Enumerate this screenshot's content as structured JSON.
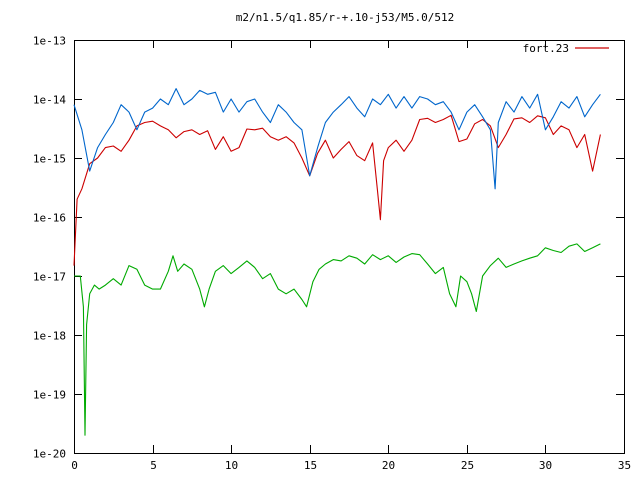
{
  "chart_data": {
    "type": "line",
    "title": "m2/n1.5/q1.85/r-+.10-j53/M5.0/512",
    "xlabel": "",
    "ylabel": "",
    "xlim": [
      0,
      35
    ],
    "ylim": [
      1e-20,
      1e-13
    ],
    "y_scale": "log",
    "grid": false,
    "legend_position": "top-right",
    "x_ticks": [
      0,
      5,
      10,
      15,
      20,
      25,
      30,
      35
    ],
    "x_tick_labels": [
      "0",
      "5",
      "10",
      "15",
      "20",
      "25",
      "30",
      "35"
    ],
    "y_ticks": [
      1e-20,
      1e-19,
      1e-18,
      1e-17,
      1e-16,
      1e-15,
      1e-14,
      1e-13
    ],
    "y_tick_labels": [
      "1e-20",
      "1e-19",
      "1e-18",
      "1e-17",
      "1e-16",
      "1e-15",
      "1e-14",
      "1e-13"
    ],
    "legend": [
      {
        "label": "fort.23",
        "color": "#cc0000"
      }
    ],
    "series": [
      {
        "color": "#cc0000",
        "x": [
          0.0,
          0.2,
          0.5,
          1.0,
          1.5,
          2.0,
          2.5,
          3.0,
          3.5,
          4.0,
          4.5,
          5.0,
          5.5,
          6.0,
          6.5,
          7.0,
          7.5,
          8.0,
          8.5,
          9.0,
          9.5,
          10.0,
          10.5,
          11.0,
          11.5,
          12.0,
          12.5,
          13.0,
          13.5,
          14.0,
          14.5,
          15.0,
          15.5,
          16.0,
          16.5,
          17.0,
          17.5,
          18.0,
          18.5,
          19.0,
          19.3,
          19.5,
          19.7,
          20.0,
          20.5,
          21.0,
          21.5,
          22.0,
          22.5,
          23.0,
          23.5,
          24.0,
          24.5,
          25.0,
          25.5,
          26.0,
          26.5,
          27.0,
          27.5,
          28.0,
          28.5,
          29.0,
          29.5,
          30.0,
          30.5,
          31.0,
          31.5,
          32.0,
          32.5,
          33.0,
          33.5
        ],
        "y": [
          1.5e-17,
          2e-16,
          3e-16,
          8e-16,
          1e-15,
          1.5e-15,
          1.6e-15,
          1.3e-15,
          2e-15,
          3.5e-15,
          4e-15,
          4.2e-15,
          3.5e-15,
          3e-15,
          2.2e-15,
          2.8e-15,
          3e-15,
          2.5e-15,
          2.9e-15,
          1.4e-15,
          2.3e-15,
          1.3e-15,
          1.5e-15,
          3.1e-15,
          3e-15,
          3.2e-15,
          2.3e-15,
          2e-15,
          2.3e-15,
          1.8e-15,
          1e-15,
          5e-16,
          1.2e-15,
          2e-15,
          1e-15,
          1.4e-15,
          1.9e-15,
          1.1e-15,
          9e-16,
          1.8e-15,
          3e-16,
          9e-17,
          9e-16,
          1.5e-15,
          2e-15,
          1.3e-15,
          2e-15,
          4.5e-15,
          4.7e-15,
          4e-15,
          4.5e-15,
          5.3e-15,
          1.9e-15,
          2.1e-15,
          3.8e-15,
          4.5e-15,
          3.5e-15,
          1.5e-15,
          2.5e-15,
          4.6e-15,
          4.8e-15,
          4e-15,
          5.2e-15,
          4.8e-15,
          2.5e-15,
          3.5e-15,
          3e-15,
          1.5e-15,
          2.5e-15,
          6e-16,
          2.5e-15
        ]
      },
      {
        "color": "#0066cc",
        "x": [
          0.0,
          0.5,
          1.0,
          1.5,
          2.0,
          2.5,
          3.0,
          3.5,
          4.0,
          4.5,
          5.0,
          5.5,
          6.0,
          6.5,
          7.0,
          7.5,
          8.0,
          8.5,
          9.0,
          9.5,
          10.0,
          10.5,
          11.0,
          11.5,
          12.0,
          12.5,
          13.0,
          13.5,
          14.0,
          14.5,
          15.0,
          15.5,
          16.0,
          16.5,
          17.0,
          17.5,
          18.0,
          18.5,
          19.0,
          19.5,
          20.0,
          20.5,
          21.0,
          21.5,
          22.0,
          22.5,
          23.0,
          23.5,
          24.0,
          24.5,
          25.0,
          25.5,
          26.0,
          26.5,
          26.8,
          27.0,
          27.5,
          28.0,
          28.5,
          29.0,
          29.5,
          30.0,
          30.5,
          31.0,
          31.5,
          32.0,
          32.5,
          33.0,
          33.5
        ],
        "y": [
          8e-15,
          3e-15,
          6e-16,
          1.5e-15,
          2.5e-15,
          4e-15,
          8e-15,
          6e-15,
          3e-15,
          6e-15,
          7e-15,
          1e-14,
          8e-15,
          1.5e-14,
          8e-15,
          1e-14,
          1.4e-14,
          1.2e-14,
          1.3e-14,
          6e-15,
          1e-14,
          6e-15,
          9e-15,
          1e-14,
          6e-15,
          4e-15,
          8e-15,
          6e-15,
          4e-15,
          3e-15,
          5e-16,
          1.5e-15,
          4e-15,
          6e-15,
          8e-15,
          1.1e-14,
          7e-15,
          5e-15,
          1e-14,
          8e-15,
          1.2e-14,
          7e-15,
          1.1e-14,
          7e-15,
          1.1e-14,
          1e-14,
          8e-15,
          9e-15,
          6e-15,
          3e-15,
          6e-15,
          8e-15,
          5e-15,
          3e-15,
          3e-16,
          4e-15,
          9e-15,
          6e-15,
          1.1e-14,
          7e-15,
          1.2e-14,
          3e-15,
          5e-15,
          9e-15,
          7e-15,
          1.1e-14,
          5e-15,
          8e-15,
          1.2e-14
        ]
      },
      {
        "color": "#00aa00",
        "x": [
          0.0,
          0.4,
          0.6,
          0.7,
          0.8,
          1.0,
          1.3,
          1.6,
          2.0,
          2.5,
          3.0,
          3.5,
          4.0,
          4.5,
          5.0,
          5.5,
          6.0,
          6.3,
          6.6,
          7.0,
          7.5,
          8.0,
          8.3,
          8.6,
          9.0,
          9.5,
          10.0,
          10.5,
          11.0,
          11.5,
          12.0,
          12.5,
          13.0,
          13.5,
          14.0,
          14.5,
          14.8,
          15.2,
          15.6,
          16.0,
          16.5,
          17.0,
          17.5,
          18.0,
          18.5,
          19.0,
          19.5,
          20.0,
          20.5,
          21.0,
          21.5,
          22.0,
          22.5,
          23.0,
          23.5,
          23.9,
          24.3,
          24.6,
          25.0,
          25.3,
          25.6,
          26.0,
          26.5,
          27.0,
          27.5,
          28.0,
          28.5,
          29.0,
          29.5,
          30.0,
          30.5,
          31.0,
          31.5,
          32.0,
          32.5,
          33.0,
          33.5
        ],
        "y": [
          1e-17,
          1e-17,
          3e-18,
          2e-20,
          1.5e-18,
          5e-18,
          7e-18,
          6e-18,
          7e-18,
          9e-18,
          7e-18,
          1.5e-17,
          1.3e-17,
          7e-18,
          6e-18,
          6e-18,
          1.2e-17,
          2.2e-17,
          1.2e-17,
          1.6e-17,
          1.3e-17,
          6e-18,
          3e-18,
          6e-18,
          1.2e-17,
          1.5e-17,
          1.1e-17,
          1.4e-17,
          1.8e-17,
          1.4e-17,
          9e-18,
          1.1e-17,
          6e-18,
          5e-18,
          6e-18,
          4e-18,
          3e-18,
          8e-18,
          1.3e-17,
          1.6e-17,
          1.9e-17,
          1.8e-17,
          2.2e-17,
          2e-17,
          1.6e-17,
          2.3e-17,
          1.9e-17,
          2.2e-17,
          1.7e-17,
          2.1e-17,
          2.4e-17,
          2.3e-17,
          1.6e-17,
          1.1e-17,
          1.4e-17,
          5e-18,
          3e-18,
          1e-17,
          8e-18,
          5e-18,
          2.5e-18,
          1e-17,
          1.5e-17,
          2e-17,
          1.4e-17,
          1.6e-17,
          1.8e-17,
          2e-17,
          2.2e-17,
          3e-17,
          2.7e-17,
          2.5e-17,
          3.2e-17,
          3.5e-17,
          2.6e-17,
          3e-17,
          3.5e-17
        ]
      }
    ]
  }
}
